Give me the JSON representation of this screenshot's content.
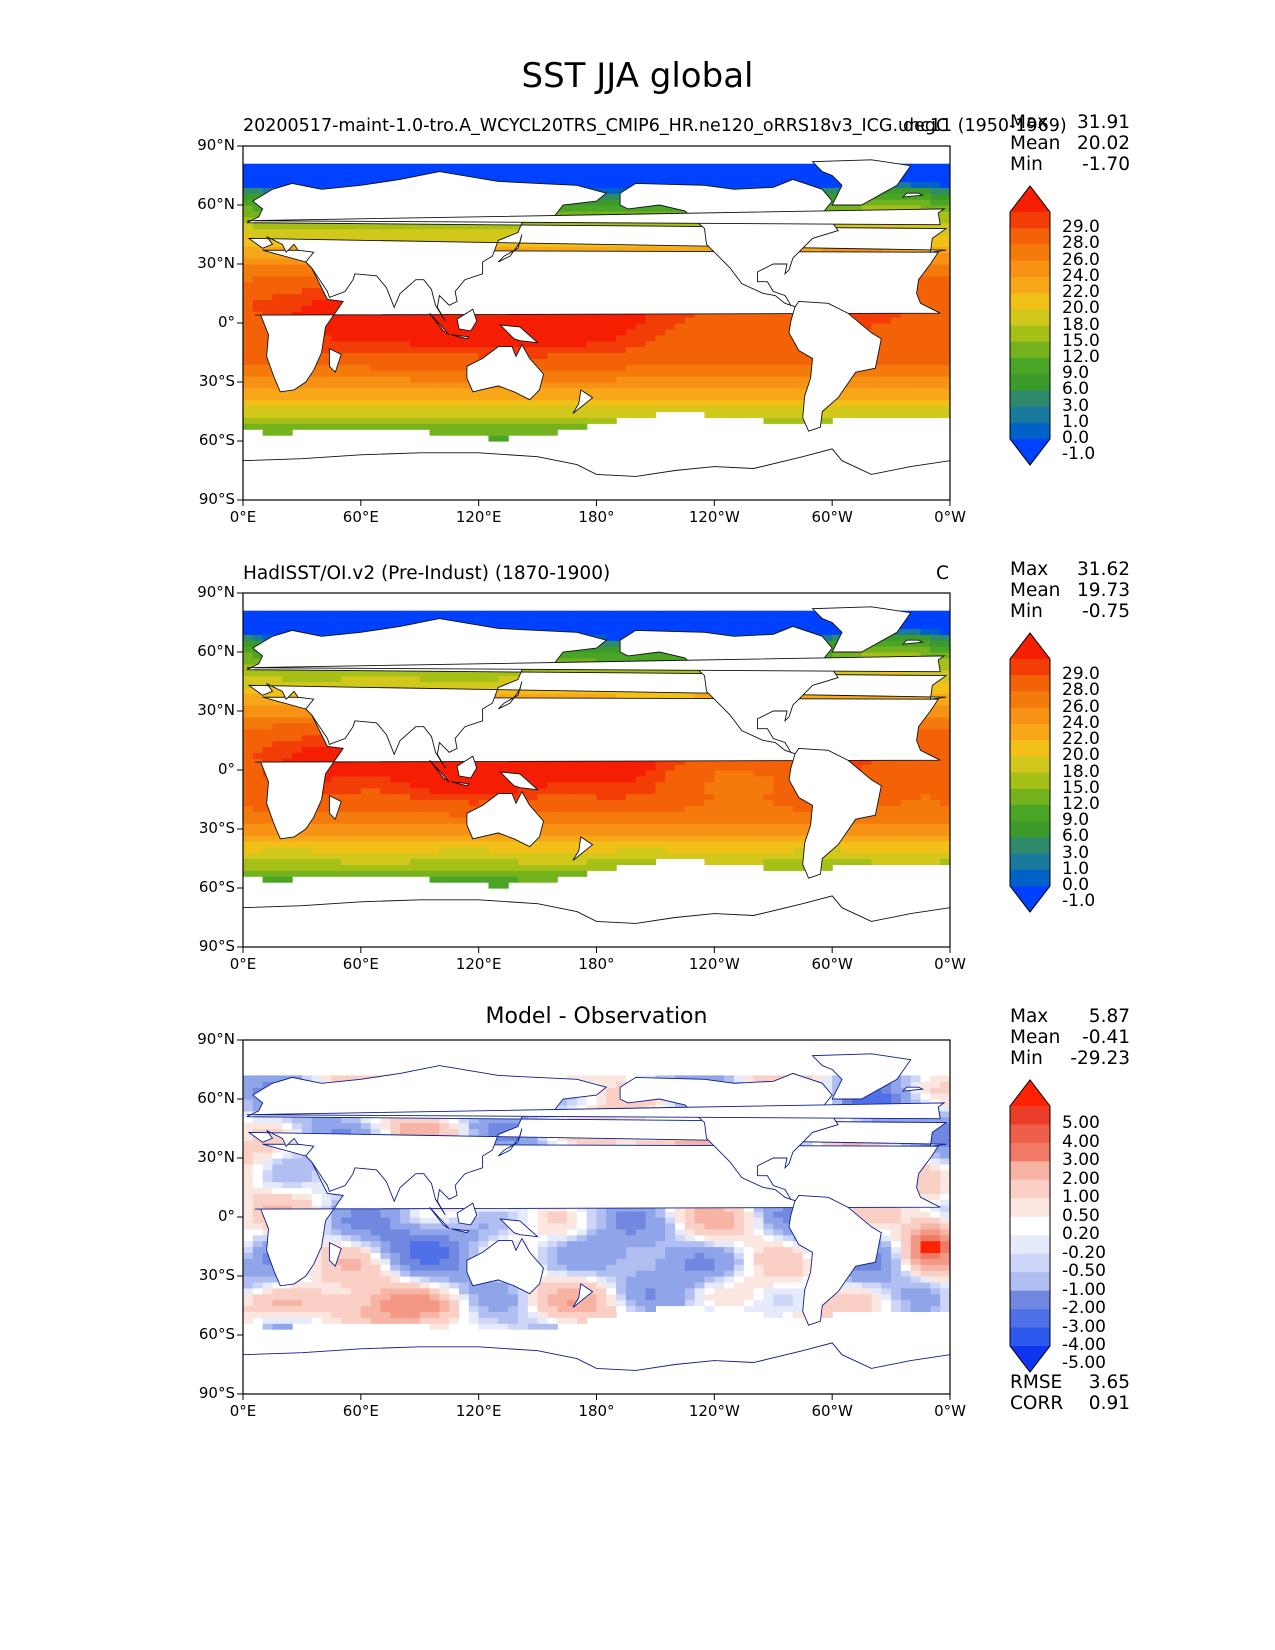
{
  "figure_title": "SST JJA global",
  "colors": {
    "sst_scale": [
      "#0040ff",
      "#0062c7",
      "#1a7a9e",
      "#2e8a6a",
      "#3c9a2a",
      "#4aa526",
      "#74b31e",
      "#a6c018",
      "#d2c81c",
      "#f2c017",
      "#f7a718",
      "#f79214",
      "#f57a0c",
      "#f46208",
      "#f23e06",
      "#f51e02"
    ],
    "diff_scale": [
      "#1034f0",
      "#2d58ee",
      "#5070ea",
      "#7088e0",
      "#90a4ea",
      "#b0bef2",
      "#cdd6f8",
      "#e6ebfc",
      "#ffffff",
      "#fce6e0",
      "#fad0c6",
      "#f7b4a4",
      "#f49784",
      "#f17a66",
      "#ee5e48",
      "#ea3c26",
      "#ff2200"
    ],
    "land": "#ffffff",
    "coast": "#111111"
  },
  "chart_data": [
    {
      "type": "heatmap",
      "title": "20200517-maint-1.0-tro.A_WCYCL20TRS_CMIP6_HR.ne120_oRRS18v3_ICG.unc11 (1950-1969)",
      "units": "degC",
      "stats": {
        "max": "31.91",
        "mean": "20.02",
        "min": "-1.70"
      },
      "stat_labels": [
        "Max",
        "Mean",
        "Min"
      ],
      "x_ticks": [
        "0°E",
        "60°E",
        "120°E",
        "180°",
        "120°W",
        "60°W",
        "0°W"
      ],
      "y_ticks": [
        "90°N",
        "60°N",
        "30°N",
        "0°",
        "30°S",
        "60°S",
        "90°S"
      ],
      "xlim": [
        0,
        360
      ],
      "ylim": [
        -90,
        90
      ],
      "colorbar": {
        "levels": [
          "29.0",
          "28.0",
          "26.0",
          "24.0",
          "22.0",
          "20.0",
          "18.0",
          "15.0",
          "12.0",
          "9.0",
          "6.0",
          "3.0",
          "1.0",
          "0.0",
          "-1.0"
        ],
        "extend": "both"
      },
      "field": "model"
    },
    {
      "type": "heatmap",
      "title": "HadISST/OI.v2 (Pre-Indust) (1870-1900)",
      "units": "C",
      "stats": {
        "max": "31.62",
        "mean": "19.73",
        "min": "-0.75"
      },
      "stat_labels": [
        "Max",
        "Mean",
        "Min"
      ],
      "x_ticks": [
        "0°E",
        "60°E",
        "120°E",
        "180°",
        "120°W",
        "60°W",
        "0°W"
      ],
      "y_ticks": [
        "90°N",
        "60°N",
        "30°N",
        "0°",
        "30°S",
        "60°S",
        "90°S"
      ],
      "xlim": [
        0,
        360
      ],
      "ylim": [
        -90,
        90
      ],
      "colorbar": {
        "levels": [
          "29.0",
          "28.0",
          "26.0",
          "24.0",
          "22.0",
          "20.0",
          "18.0",
          "15.0",
          "12.0",
          "9.0",
          "6.0",
          "3.0",
          "1.0",
          "0.0",
          "-1.0"
        ],
        "extend": "both"
      },
      "field": "obs"
    },
    {
      "type": "heatmap",
      "title": "Model - Observation",
      "units": "",
      "stats": {
        "max": "5.87",
        "mean": "-0.41",
        "min": "-29.23"
      },
      "stat_labels": [
        "Max",
        "Mean",
        "Min"
      ],
      "extra_stats": {
        "labels": [
          "RMSE",
          "CORR"
        ],
        "values": [
          "3.65",
          "0.91"
        ]
      },
      "x_ticks": [
        "0°E",
        "60°E",
        "120°E",
        "180°",
        "120°W",
        "60°W",
        "0°W"
      ],
      "y_ticks": [
        "90°N",
        "60°N",
        "30°N",
        "0°",
        "30°S",
        "60°S",
        "90°S"
      ],
      "xlim": [
        0,
        360
      ],
      "ylim": [
        -90,
        90
      ],
      "colorbar": {
        "levels": [
          "5.00",
          "4.00",
          "3.00",
          "2.00",
          "1.00",
          "0.50",
          "0.20",
          "-0.20",
          "-0.50",
          "-1.00",
          "-2.00",
          "-3.00",
          "-4.00",
          "-5.00"
        ],
        "extend": "both"
      },
      "field": "diff"
    }
  ]
}
